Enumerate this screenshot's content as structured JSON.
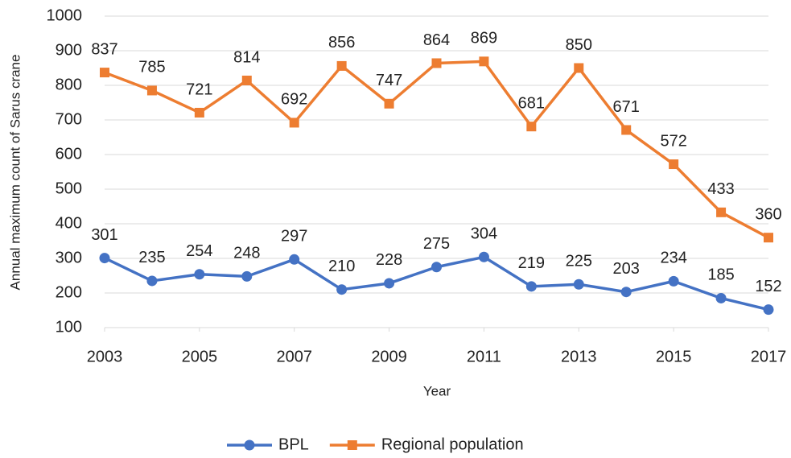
{
  "chart_data": {
    "type": "line",
    "x_label": "Year",
    "y_label": "Annual maximum count of Sarus crane",
    "x": [
      2003,
      2004,
      2005,
      2006,
      2007,
      2008,
      2009,
      2010,
      2011,
      2012,
      2013,
      2014,
      2015,
      2016,
      2017
    ],
    "series": [
      {
        "name": "BPL",
        "color": "#4472c4",
        "marker": "circle",
        "values": [
          301,
          235,
          254,
          248,
          297,
          210,
          228,
          275,
          304,
          219,
          225,
          203,
          234,
          185,
          152
        ]
      },
      {
        "name": "Regional population",
        "color": "#ed7d31",
        "marker": "square",
        "values": [
          837,
          785,
          721,
          814,
          692,
          856,
          747,
          864,
          869,
          681,
          850,
          671,
          572,
          433,
          360
        ]
      }
    ],
    "xlim": [
      2003,
      2017
    ],
    "xticks": [
      2003,
      2005,
      2007,
      2009,
      2011,
      2013,
      2015,
      2017
    ],
    "ylim": [
      100,
      1000
    ],
    "yticks": [
      100,
      200,
      300,
      400,
      500,
      600,
      700,
      800,
      900,
      1000
    ],
    "grid": true,
    "legend": "bottom"
  }
}
